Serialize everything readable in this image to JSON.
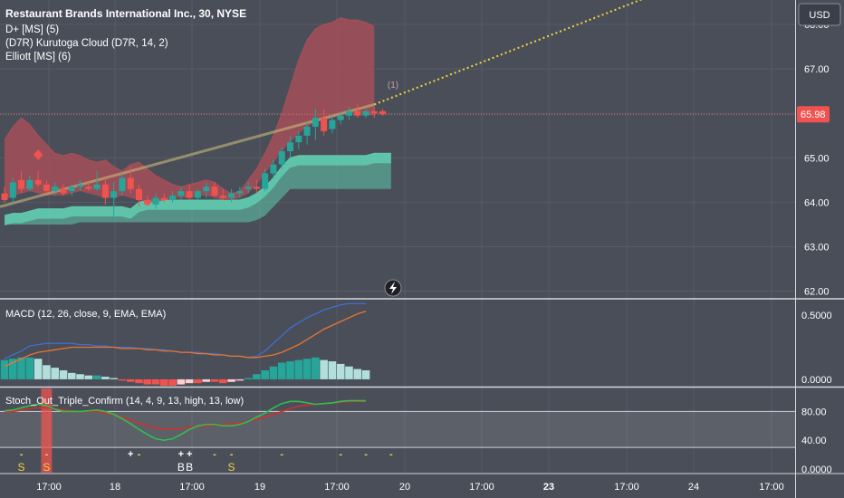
{
  "header": {
    "title": "Restaurant Brands International Inc., 30, NYSE",
    "indicators": [
      "D+ [MS] (5)",
      "(D7R) Kurutoga Cloud (D7R, 14, 2)",
      "Elliott [MS] (6)"
    ],
    "currency": "USD"
  },
  "colors": {
    "background": "#4a4e59",
    "grid": "#575b66",
    "bull": "#26a69a",
    "bear": "#ef5350",
    "cloud_red": "#a94f58",
    "cloud_green": "#5fc9ad",
    "macd": "#3f6fd1",
    "signal": "#e8762d",
    "stoch_k": "#2fbf4f",
    "stoch_d": "#d42d2d",
    "trend": "#f2d43a"
  },
  "chart_data": {
    "type": "candlestick",
    "symbol": "Restaurant Brands International Inc.",
    "timeframe": "30",
    "exchange": "NYSE",
    "last_price": "65.98",
    "price_axis": {
      "ylim": [
        61.85,
        68.55
      ],
      "ticks": [
        "68.00",
        "67.00",
        "66.00",
        "65.00",
        "64.00",
        "63.00",
        "62.00"
      ]
    },
    "time_axis": [
      "17:00",
      "18",
      "17:00",
      "19",
      "17:00",
      "20",
      "17:00",
      "23",
      "17:00",
      "24",
      "17:00"
    ],
    "candles": [
      {
        "o": 64.2,
        "h": 64.35,
        "l": 64.0,
        "c": 64.05
      },
      {
        "o": 64.1,
        "h": 64.55,
        "l": 64.0,
        "c": 64.45
      },
      {
        "o": 64.5,
        "h": 64.7,
        "l": 64.2,
        "c": 64.3
      },
      {
        "o": 64.3,
        "h": 64.6,
        "l": 64.25,
        "c": 64.5
      },
      {
        "o": 64.5,
        "h": 64.7,
        "l": 64.35,
        "c": 64.4
      },
      {
        "o": 64.4,
        "h": 64.5,
        "l": 64.2,
        "c": 64.25
      },
      {
        "o": 64.25,
        "h": 64.45,
        "l": 64.15,
        "c": 64.35
      },
      {
        "o": 64.3,
        "h": 64.4,
        "l": 64.15,
        "c": 64.2
      },
      {
        "o": 64.25,
        "h": 64.4,
        "l": 64.15,
        "c": 64.35
      },
      {
        "o": 64.35,
        "h": 64.5,
        "l": 64.25,
        "c": 64.4
      },
      {
        "o": 64.35,
        "h": 64.45,
        "l": 64.25,
        "c": 64.3
      },
      {
        "o": 64.3,
        "h": 64.7,
        "l": 64.25,
        "c": 64.4
      },
      {
        "o": 64.4,
        "h": 64.55,
        "l": 63.95,
        "c": 64.1
      },
      {
        "o": 64.1,
        "h": 64.45,
        "l": 63.65,
        "c": 64.25
      },
      {
        "o": 64.25,
        "h": 64.65,
        "l": 64.15,
        "c": 64.55
      },
      {
        "o": 64.55,
        "h": 64.8,
        "l": 64.2,
        "c": 64.3
      },
      {
        "o": 64.3,
        "h": 64.4,
        "l": 63.9,
        "c": 64.05
      },
      {
        "o": 64.05,
        "h": 64.15,
        "l": 63.9,
        "c": 63.95
      },
      {
        "o": 63.95,
        "h": 64.2,
        "l": 63.85,
        "c": 64.1
      },
      {
        "o": 64.1,
        "h": 64.2,
        "l": 64.0,
        "c": 64.05
      },
      {
        "o": 64.05,
        "h": 64.25,
        "l": 64.0,
        "c": 64.15
      },
      {
        "o": 64.15,
        "h": 64.35,
        "l": 64.05,
        "c": 64.25
      },
      {
        "o": 64.25,
        "h": 64.4,
        "l": 64.05,
        "c": 64.1
      },
      {
        "o": 64.1,
        "h": 64.3,
        "l": 64.05,
        "c": 64.25
      },
      {
        "o": 64.25,
        "h": 64.45,
        "l": 64.1,
        "c": 64.35
      },
      {
        "o": 64.35,
        "h": 64.45,
        "l": 64.1,
        "c": 64.15
      },
      {
        "o": 64.15,
        "h": 64.3,
        "l": 64.05,
        "c": 64.1
      },
      {
        "o": 64.1,
        "h": 64.3,
        "l": 64.0,
        "c": 64.2
      },
      {
        "o": 64.2,
        "h": 64.35,
        "l": 64.1,
        "c": 64.25
      },
      {
        "o": 64.3,
        "h": 64.45,
        "l": 64.2,
        "c": 64.35
      },
      {
        "o": 64.35,
        "h": 64.5,
        "l": 64.2,
        "c": 64.3
      },
      {
        "o": 64.3,
        "h": 64.75,
        "l": 64.25,
        "c": 64.65
      },
      {
        "o": 64.65,
        "h": 64.95,
        "l": 64.55,
        "c": 64.85
      },
      {
        "o": 64.85,
        "h": 65.25,
        "l": 64.75,
        "c": 65.15
      },
      {
        "o": 65.15,
        "h": 65.5,
        "l": 65.0,
        "c": 65.35
      },
      {
        "o": 65.35,
        "h": 65.6,
        "l": 65.2,
        "c": 65.5
      },
      {
        "o": 65.5,
        "h": 65.8,
        "l": 65.3,
        "c": 65.7
      },
      {
        "o": 65.7,
        "h": 66.1,
        "l": 65.4,
        "c": 65.9
      },
      {
        "o": 65.9,
        "h": 66.1,
        "l": 65.5,
        "c": 65.6
      },
      {
        "o": 65.65,
        "h": 65.95,
        "l": 65.55,
        "c": 65.85
      },
      {
        "o": 65.85,
        "h": 66.05,
        "l": 65.75,
        "c": 65.95
      },
      {
        "o": 65.95,
        "h": 66.15,
        "l": 65.85,
        "c": 66.05
      },
      {
        "o": 66.05,
        "h": 66.2,
        "l": 65.9,
        "c": 65.95
      },
      {
        "o": 65.95,
        "h": 66.1,
        "l": 65.9,
        "c": 66.05
      },
      {
        "o": 66.05,
        "h": 66.15,
        "l": 65.9,
        "c": 66.0
      },
      {
        "o": 66.05,
        "h": 66.1,
        "l": 65.95,
        "c": 65.98
      }
    ],
    "cloud_red_upper": [
      65.4,
      65.7,
      65.9,
      65.75,
      65.5,
      65.3,
      65.1,
      65.05,
      65.1,
      65.05,
      64.95,
      64.9,
      64.95,
      64.8,
      64.7,
      64.85,
      64.9,
      64.75,
      64.6,
      64.5,
      64.4,
      64.35,
      64.4,
      64.45,
      64.5,
      64.45,
      64.3,
      64.2,
      64.25,
      64.5,
      64.75,
      65.1,
      65.5,
      66.0,
      66.6,
      67.2,
      67.65,
      67.9,
      68.0,
      68.05,
      68.15,
      68.1,
      68.1,
      68.05,
      67.95
    ],
    "cloud_red_lower": [
      64.05,
      64.15,
      64.2,
      64.25,
      64.2,
      64.15,
      64.15,
      64.15,
      64.2,
      64.25,
      64.2,
      64.15,
      64.1,
      64.1,
      64.15,
      64.1,
      64.05,
      64.0,
      64.0,
      64.05,
      64.1,
      64.1,
      64.1,
      64.15,
      64.15,
      64.1,
      64.05,
      64.05,
      64.1,
      64.2,
      64.4,
      64.65,
      64.9,
      65.15,
      65.35,
      65.55,
      65.7,
      65.8,
      65.85,
      65.9,
      65.95,
      66.0,
      66.0,
      65.98,
      65.95
    ],
    "cloud_green_upper": [
      63.7,
      63.75,
      63.75,
      63.8,
      63.85,
      63.85,
      63.85,
      63.85,
      63.9,
      63.9,
      63.9,
      63.9,
      63.9,
      63.9,
      63.9,
      63.85,
      64.0,
      64.05,
      64.05,
      64.05,
      64.05,
      64.05,
      64.05,
      64.05,
      64.05,
      64.05,
      64.05,
      64.05,
      64.05,
      64.1,
      64.2,
      64.35,
      64.55,
      64.8,
      65.0,
      65.05,
      65.05,
      65.05,
      65.05,
      65.05,
      65.05,
      65.05,
      65.05,
      65.05,
      65.1,
      65.1,
      65.1
    ],
    "cloud_green_lower": [
      63.5,
      63.5,
      63.5,
      63.5,
      63.5,
      63.5,
      63.5,
      63.5,
      63.5,
      63.55,
      63.55,
      63.55,
      63.55,
      63.55,
      63.55,
      63.55,
      63.55,
      63.55,
      63.55,
      63.55,
      63.55,
      63.55,
      63.55,
      63.55,
      63.55,
      63.55,
      63.55,
      63.55,
      63.55,
      63.55,
      63.6,
      63.7,
      63.9,
      64.1,
      64.3,
      64.3,
      64.3,
      64.3,
      64.3,
      64.3,
      64.3,
      64.3,
      64.3,
      64.3,
      64.3,
      64.3,
      64.3
    ],
    "trend_line": {
      "from": [
        0,
        63.9
      ],
      "to": [
        44,
        66.2
      ],
      "projection_to": [
        79,
        68.8
      ]
    },
    "wave_label": "(1)",
    "macd": {
      "label": "MACD (12, 26, close, 9, EMA, EMA)",
      "ylim": [
        -0.05,
        0.62
      ],
      "ticks": [
        "0.5000",
        "0.0000"
      ],
      "macd_line": [
        0.16,
        0.19,
        0.22,
        0.26,
        0.27,
        0.28,
        0.28,
        0.28,
        0.28,
        0.27,
        0.27,
        0.26,
        0.26,
        0.25,
        0.25,
        0.25,
        0.24,
        0.24,
        0.23,
        0.23,
        0.22,
        0.21,
        0.21,
        0.21,
        0.2,
        0.2,
        0.19,
        0.18,
        0.18,
        0.17,
        0.18,
        0.22,
        0.28,
        0.34,
        0.4,
        0.44,
        0.48,
        0.51,
        0.54,
        0.56,
        0.58,
        0.59,
        0.59,
        0.59
      ],
      "signal_line": [
        0.1,
        0.13,
        0.16,
        0.19,
        0.21,
        0.22,
        0.23,
        0.24,
        0.25,
        0.25,
        0.25,
        0.25,
        0.25,
        0.25,
        0.24,
        0.24,
        0.24,
        0.23,
        0.23,
        0.22,
        0.22,
        0.21,
        0.21,
        0.2,
        0.2,
        0.19,
        0.19,
        0.18,
        0.18,
        0.17,
        0.17,
        0.18,
        0.19,
        0.21,
        0.24,
        0.27,
        0.31,
        0.35,
        0.39,
        0.42,
        0.45,
        0.48,
        0.51,
        0.53
      ],
      "histogram": [
        0.15,
        0.16,
        0.17,
        0.17,
        0.16,
        0.11,
        0.09,
        0.07,
        0.05,
        0.04,
        0.03,
        0.03,
        0.02,
        0.01,
        -0.01,
        -0.02,
        -0.03,
        -0.04,
        -0.04,
        -0.05,
        -0.05,
        -0.04,
        -0.03,
        -0.03,
        -0.02,
        -0.02,
        -0.03,
        -0.02,
        -0.01,
        0.01,
        0.04,
        0.07,
        0.1,
        0.13,
        0.14,
        0.15,
        0.16,
        0.17,
        0.15,
        0.14,
        0.12,
        0.1,
        0.08,
        0.07
      ]
    },
    "stoch": {
      "label": "Stoch_Out_Triple_Confirm (14, 4, 9, 13, high, 13, low)",
      "ylim": [
        -5,
        112
      ],
      "ticks": [
        "80.00",
        "40.00",
        "0.0000"
      ],
      "band": [
        30,
        80
      ],
      "k_line": [
        81,
        82,
        85,
        88,
        90,
        88,
        83,
        80,
        80,
        80,
        81,
        82,
        80,
        76,
        70,
        63,
        55,
        48,
        42,
        40,
        42,
        48,
        55,
        60,
        62,
        62,
        60,
        60,
        62,
        66,
        72,
        78,
        85,
        91,
        94,
        94,
        92,
        90,
        91,
        92,
        94,
        95,
        95,
        95
      ],
      "d_line": [
        79,
        80,
        82,
        84,
        85,
        85,
        84,
        82,
        81,
        80,
        80,
        80,
        78,
        75,
        72,
        68,
        64,
        60,
        57,
        55,
        55,
        56,
        58,
        59,
        60,
        61,
        62,
        63,
        64,
        66,
        69,
        72,
        76,
        80,
        84,
        87,
        89,
        90,
        91,
        92,
        93,
        94,
        94,
        94
      ],
      "markers": [
        {
          "bar": 2,
          "symbol": "-",
          "letter": "S",
          "color": "#f2d43a"
        },
        {
          "bar": 5,
          "symbol": "-",
          "letter": "S",
          "color": "#f2d43a",
          "highlight": true
        },
        {
          "bar": 15,
          "symbol": "+",
          "letter": "",
          "color": "#ffffff"
        },
        {
          "bar": 16,
          "symbol": "-",
          "letter": "",
          "color": "#f2d43a"
        },
        {
          "bar": 21,
          "symbol": "+",
          "letter": "B",
          "color": "#ffffff"
        },
        {
          "bar": 22,
          "symbol": "+",
          "letter": "B",
          "color": "#ffffff"
        },
        {
          "bar": 25,
          "symbol": "-",
          "letter": "",
          "color": "#f2d43a"
        },
        {
          "bar": 27,
          "symbol": "-",
          "letter": "S",
          "color": "#f2d43a"
        },
        {
          "bar": 33,
          "symbol": "-",
          "letter": "",
          "color": "#f2d43a"
        },
        {
          "bar": 40,
          "symbol": "-",
          "letter": "",
          "color": "#f2d43a"
        },
        {
          "bar": 43,
          "symbol": "-",
          "letter": "",
          "color": "#f2d43a"
        },
        {
          "bar": 46,
          "symbol": "-",
          "letter": "",
          "color": "#f2d43a"
        }
      ]
    }
  }
}
